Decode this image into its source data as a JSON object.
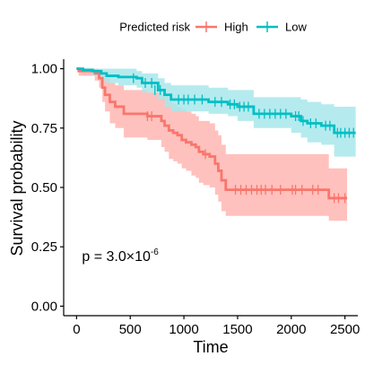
{
  "chart_data": {
    "type": "line",
    "subtype": "kaplan-meier",
    "xlabel": "Time",
    "ylabel": "Survival probability",
    "xlim": [
      -120,
      2620
    ],
    "ylim": [
      -0.04,
      1.04
    ],
    "x_ticks": [
      0,
      500,
      1000,
      1500,
      2000,
      2500
    ],
    "x_tick_labels": [
      "0",
      "500",
      "1000",
      "1500",
      "2000",
      "2500"
    ],
    "y_ticks": [
      0,
      0.25,
      0.5,
      0.75,
      1.0
    ],
    "y_tick_labels": [
      "0.00",
      "0.25",
      "0.50",
      "0.75",
      "1.00"
    ],
    "grid": false,
    "legend": {
      "title": "Predicted risk",
      "position": "top",
      "entries": [
        "High",
        "Low"
      ]
    },
    "annotation": {
      "prefix": "p = 3.0×10",
      "exponent": "-6",
      "x": 50,
      "y": 0.19
    },
    "series": [
      {
        "name": "High",
        "color": "#F8766D",
        "band_color": "#FFB6B2",
        "steps": [
          [
            0,
            1.0
          ],
          [
            20,
            0.99
          ],
          [
            170,
            0.98
          ],
          [
            210,
            0.96
          ],
          [
            240,
            0.92
          ],
          [
            265,
            0.89
          ],
          [
            310,
            0.86
          ],
          [
            360,
            0.84
          ],
          [
            440,
            0.81
          ],
          [
            660,
            0.8
          ],
          [
            790,
            0.78
          ],
          [
            820,
            0.76
          ],
          [
            860,
            0.74
          ],
          [
            900,
            0.73
          ],
          [
            940,
            0.72
          ],
          [
            980,
            0.7
          ],
          [
            1020,
            0.69
          ],
          [
            1070,
            0.68
          ],
          [
            1110,
            0.67
          ],
          [
            1140,
            0.65
          ],
          [
            1180,
            0.64
          ],
          [
            1240,
            0.63
          ],
          [
            1290,
            0.6
          ],
          [
            1320,
            0.57
          ],
          [
            1350,
            0.53
          ],
          [
            1390,
            0.49
          ],
          [
            2350,
            0.455
          ],
          [
            2520,
            0.455
          ]
        ],
        "upper": [
          [
            0,
            1.0
          ],
          [
            20,
            1.0
          ],
          [
            170,
            1.0
          ],
          [
            210,
            0.99
          ],
          [
            240,
            0.97
          ],
          [
            265,
            0.96
          ],
          [
            310,
            0.94
          ],
          [
            360,
            0.93
          ],
          [
            440,
            0.91
          ],
          [
            660,
            0.9
          ],
          [
            790,
            0.89
          ],
          [
            820,
            0.88
          ],
          [
            860,
            0.86
          ],
          [
            900,
            0.85
          ],
          [
            940,
            0.84
          ],
          [
            980,
            0.83
          ],
          [
            1020,
            0.82
          ],
          [
            1070,
            0.81
          ],
          [
            1110,
            0.8
          ],
          [
            1140,
            0.78
          ],
          [
            1180,
            0.78
          ],
          [
            1240,
            0.77
          ],
          [
            1290,
            0.74
          ],
          [
            1320,
            0.72
          ],
          [
            1350,
            0.68
          ],
          [
            1390,
            0.64
          ],
          [
            2350,
            0.58
          ],
          [
            2520,
            0.58
          ]
        ],
        "lower": [
          [
            0,
            1.0
          ],
          [
            20,
            0.97
          ],
          [
            170,
            0.95
          ],
          [
            210,
            0.92
          ],
          [
            240,
            0.86
          ],
          [
            265,
            0.82
          ],
          [
            310,
            0.77
          ],
          [
            360,
            0.75
          ],
          [
            440,
            0.71
          ],
          [
            660,
            0.7
          ],
          [
            790,
            0.67
          ],
          [
            820,
            0.65
          ],
          [
            860,
            0.62
          ],
          [
            900,
            0.61
          ],
          [
            940,
            0.6
          ],
          [
            980,
            0.58
          ],
          [
            1020,
            0.57
          ],
          [
            1070,
            0.55
          ],
          [
            1110,
            0.54
          ],
          [
            1140,
            0.52
          ],
          [
            1180,
            0.51
          ],
          [
            1240,
            0.5
          ],
          [
            1290,
            0.47
          ],
          [
            1320,
            0.44
          ],
          [
            1350,
            0.4
          ],
          [
            1390,
            0.38
          ],
          [
            2350,
            0.36
          ],
          [
            2520,
            0.36
          ]
        ],
        "censored": [
          [
            660,
            0.8
          ],
          [
            700,
            0.8
          ],
          [
            1200,
            0.64
          ],
          [
            1480,
            0.49
          ],
          [
            1530,
            0.49
          ],
          [
            1580,
            0.49
          ],
          [
            1630,
            0.49
          ],
          [
            1680,
            0.49
          ],
          [
            1720,
            0.49
          ],
          [
            1760,
            0.49
          ],
          [
            1820,
            0.49
          ],
          [
            1900,
            0.49
          ],
          [
            2010,
            0.49
          ],
          [
            2040,
            0.49
          ],
          [
            2100,
            0.49
          ],
          [
            2200,
            0.49
          ],
          [
            2250,
            0.49
          ],
          [
            2400,
            0.455
          ],
          [
            2440,
            0.455
          ],
          [
            2500,
            0.455
          ]
        ]
      },
      {
        "name": "Low",
        "color": "#00BFC4",
        "band_color": "#A8E8EB",
        "steps": [
          [
            0,
            1.0
          ],
          [
            60,
            0.995
          ],
          [
            150,
            0.99
          ],
          [
            230,
            0.98
          ],
          [
            280,
            0.97
          ],
          [
            390,
            0.965
          ],
          [
            560,
            0.96
          ],
          [
            610,
            0.94
          ],
          [
            760,
            0.91
          ],
          [
            820,
            0.89
          ],
          [
            880,
            0.87
          ],
          [
            1230,
            0.86
          ],
          [
            1410,
            0.85
          ],
          [
            1500,
            0.84
          ],
          [
            1650,
            0.81
          ],
          [
            2000,
            0.8
          ],
          [
            2090,
            0.78
          ],
          [
            2150,
            0.77
          ],
          [
            2280,
            0.76
          ],
          [
            2400,
            0.73
          ],
          [
            2600,
            0.73
          ]
        ],
        "upper": [
          [
            0,
            1.0
          ],
          [
            60,
            1.0
          ],
          [
            150,
            1.0
          ],
          [
            230,
            1.0
          ],
          [
            280,
            1.0
          ],
          [
            390,
            1.0
          ],
          [
            560,
            0.99
          ],
          [
            610,
            0.98
          ],
          [
            760,
            0.96
          ],
          [
            820,
            0.94
          ],
          [
            880,
            0.93
          ],
          [
            1230,
            0.92
          ],
          [
            1410,
            0.91
          ],
          [
            1500,
            0.91
          ],
          [
            1650,
            0.88
          ],
          [
            2000,
            0.88
          ],
          [
            2090,
            0.87
          ],
          [
            2150,
            0.86
          ],
          [
            2280,
            0.85
          ],
          [
            2400,
            0.84
          ],
          [
            2600,
            0.84
          ]
        ],
        "lower": [
          [
            0,
            1.0
          ],
          [
            60,
            0.99
          ],
          [
            150,
            0.97
          ],
          [
            230,
            0.95
          ],
          [
            280,
            0.94
          ],
          [
            390,
            0.93
          ],
          [
            560,
            0.92
          ],
          [
            610,
            0.9
          ],
          [
            760,
            0.87
          ],
          [
            820,
            0.84
          ],
          [
            880,
            0.82
          ],
          [
            1230,
            0.81
          ],
          [
            1410,
            0.8
          ],
          [
            1500,
            0.78
          ],
          [
            1650,
            0.75
          ],
          [
            2000,
            0.73
          ],
          [
            2090,
            0.71
          ],
          [
            2150,
            0.69
          ],
          [
            2280,
            0.68
          ],
          [
            2400,
            0.63
          ],
          [
            2600,
            0.63
          ]
        ],
        "censored": [
          [
            530,
            0.96
          ],
          [
            640,
            0.94
          ],
          [
            700,
            0.94
          ],
          [
            730,
            0.91
          ],
          [
            780,
            0.91
          ],
          [
            950,
            0.87
          ],
          [
            1000,
            0.87
          ],
          [
            1040,
            0.87
          ],
          [
            1100,
            0.87
          ],
          [
            1170,
            0.87
          ],
          [
            1290,
            0.86
          ],
          [
            1350,
            0.86
          ],
          [
            1430,
            0.85
          ],
          [
            1470,
            0.85
          ],
          [
            1520,
            0.84
          ],
          [
            1560,
            0.84
          ],
          [
            1600,
            0.84
          ],
          [
            1700,
            0.81
          ],
          [
            1750,
            0.81
          ],
          [
            1800,
            0.81
          ],
          [
            1850,
            0.81
          ],
          [
            1900,
            0.81
          ],
          [
            1950,
            0.81
          ],
          [
            2040,
            0.8
          ],
          [
            2070,
            0.8
          ],
          [
            2110,
            0.78
          ],
          [
            2180,
            0.77
          ],
          [
            2230,
            0.77
          ],
          [
            2320,
            0.76
          ],
          [
            2360,
            0.76
          ],
          [
            2430,
            0.73
          ],
          [
            2460,
            0.73
          ],
          [
            2500,
            0.73
          ],
          [
            2540,
            0.73
          ],
          [
            2580,
            0.73
          ]
        ]
      }
    ]
  }
}
